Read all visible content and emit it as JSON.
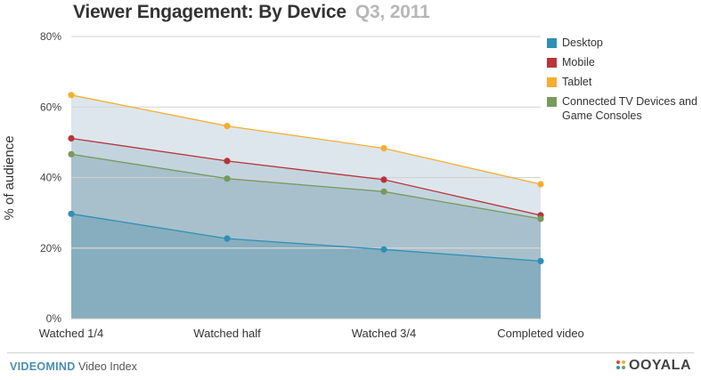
{
  "header": {
    "title": "Viewer Engagement: By Device",
    "subtitle": "Q3, 2011"
  },
  "chart_data": {
    "type": "area",
    "title": "Viewer Engagement: By Device",
    "subtitle": "Q3, 2011",
    "xlabel": "",
    "ylabel": "% of audience",
    "categories": [
      "Watched 1/4",
      "Watched half",
      "Watched 3/4",
      "Completed video"
    ],
    "y_ticks": [
      "0%",
      "20%",
      "40%",
      "60%",
      "80%"
    ],
    "ylim": [
      0,
      80
    ],
    "grid": true,
    "legend_position": "right",
    "series": [
      {
        "name": "Desktop",
        "color": "#2e8fb5",
        "values": [
          29.7,
          22.7,
          19.6,
          16.3
        ]
      },
      {
        "name": "Mobile",
        "color": "#b73439",
        "values": [
          51.1,
          44.7,
          39.4,
          29.3
        ]
      },
      {
        "name": "Tablet",
        "color": "#f5ae2f",
        "values": [
          63.4,
          54.6,
          48.3,
          38.1
        ]
      },
      {
        "name": "Connected TV Devices and Game Consoles",
        "color": "#789a5b",
        "values": [
          46.6,
          39.7,
          36.0,
          28.3
        ]
      }
    ]
  },
  "legend": {
    "items": [
      {
        "label": "Desktop",
        "color": "#2e8fb5"
      },
      {
        "label": "Mobile",
        "color": "#b73439"
      },
      {
        "label": "Tablet",
        "color": "#f5ae2f"
      },
      {
        "label": "Connected TV Devices and Game Consoles",
        "color": "#789a5b"
      }
    ]
  },
  "footer": {
    "brand": "VIDEOMIND",
    "brand_suffix": "Video Index",
    "logo": "OOYALA"
  }
}
